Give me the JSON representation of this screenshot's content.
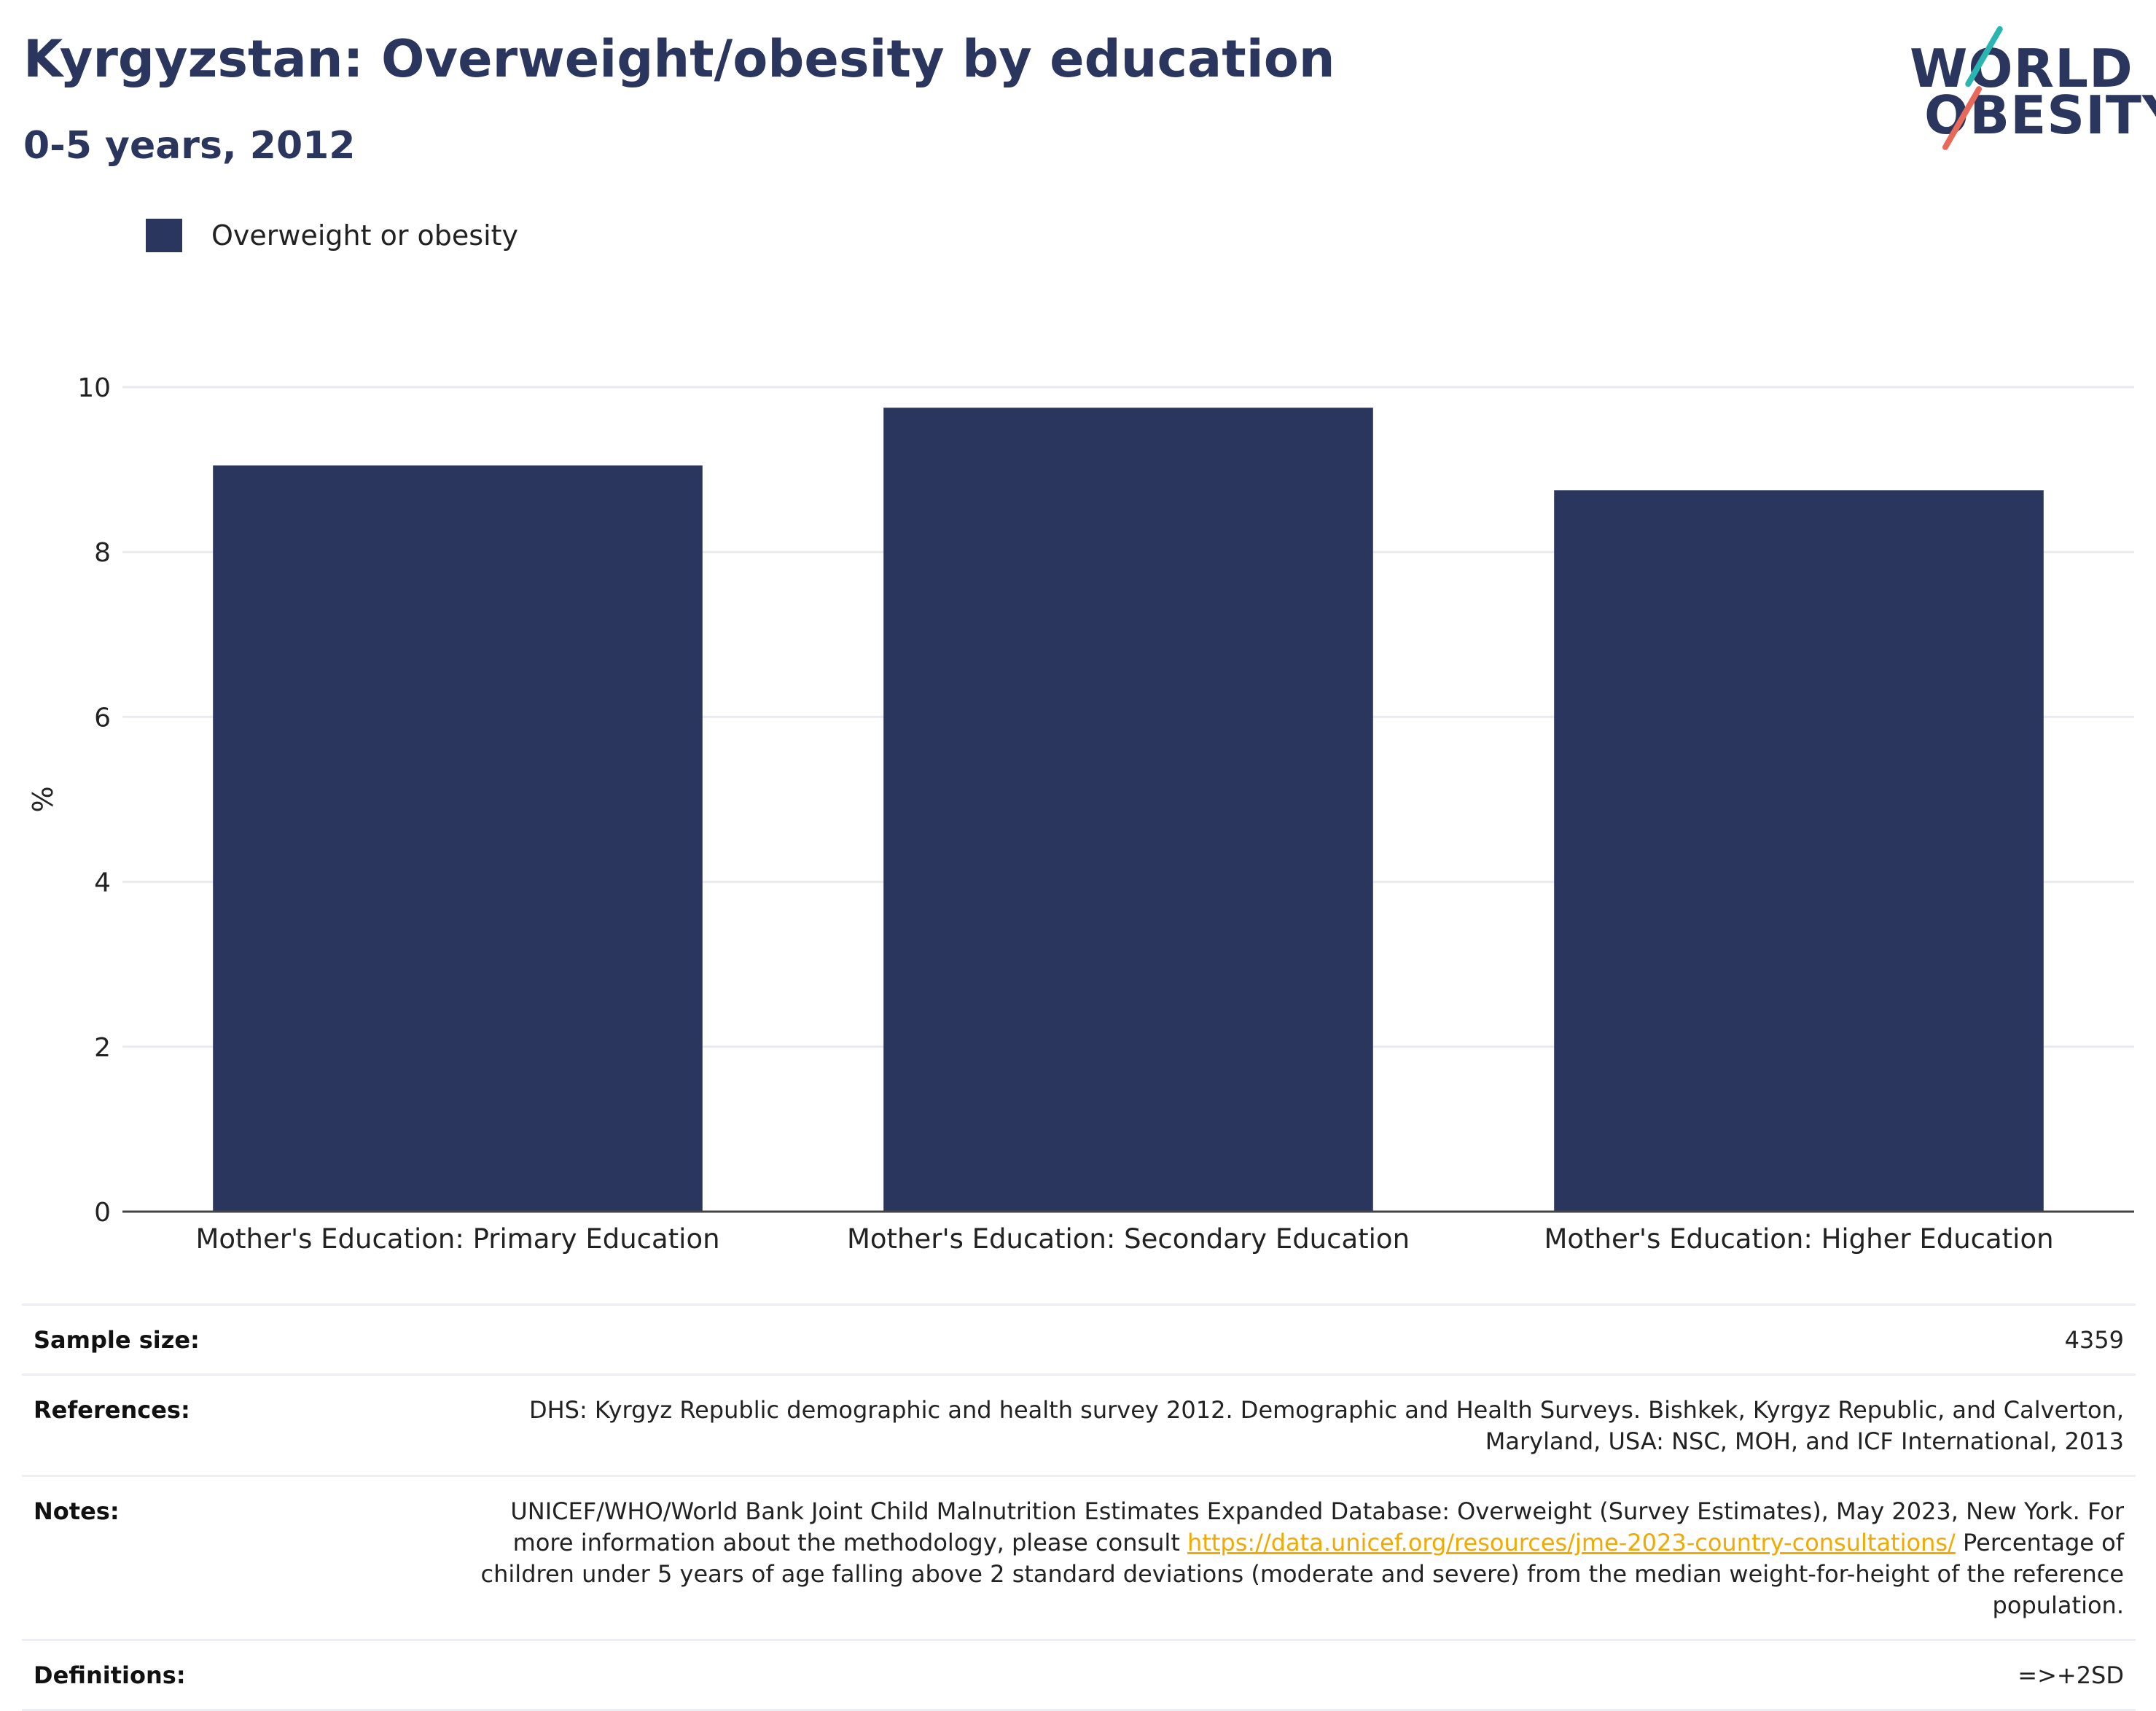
{
  "header": {
    "title": "Kyrgyzstan: Overweight/obesity by education",
    "subtitle": "0-5 years, 2012"
  },
  "logo": {
    "line1": "WORLD",
    "line2": "OBESITY",
    "colors": {
      "text": "#2b365e",
      "slash_top": "#2bb5b0",
      "slash_bottom": "#e8685a"
    }
  },
  "legend": {
    "items": [
      {
        "label": "Overweight or obesity",
        "color": "#2b365e"
      }
    ]
  },
  "chart_data": {
    "type": "bar",
    "categories": [
      "Mother's Education: Primary Education",
      "Mother's Education: Secondary Education",
      "Mother's Education: Higher Education"
    ],
    "series": [
      {
        "name": "Overweight or obesity",
        "values": [
          9.05,
          9.75,
          8.75
        ],
        "color": "#2b365e"
      }
    ],
    "ylabel": "%",
    "xlabel": "",
    "ylim": [
      0,
      10
    ],
    "yticks": [
      0,
      2,
      4,
      6,
      8,
      10
    ],
    "grid": true,
    "legend_position": "top-left"
  },
  "info": {
    "sample_size_label": "Sample size:",
    "sample_size_value": "4359",
    "references_label": "References:",
    "references_value": "DHS: Kyrgyz Republic demographic and health survey 2012. Demographic and Health Surveys. Bishkek, Kyrgyz Republic, and Calverton, Maryland, USA: NSC, MOH, and ICF International, 2013",
    "notes_label": "Notes:",
    "notes_text_before": "UNICEF/WHO/World Bank Joint Child Malnutrition Estimates Expanded Database: Overweight (Survey Estimates), May 2023, New York. For more information about the methodology, please consult ",
    "notes_link": "https://data.unicef.org/resources/jme-2023-country-consultations/",
    "notes_text_after": " Percentage of children under 5 years of age falling above 2 standard deviations (moderate and severe) from the median weight-for-height of the reference population.",
    "definitions_label": "Definitions:",
    "definitions_value": "=>+2SD"
  }
}
